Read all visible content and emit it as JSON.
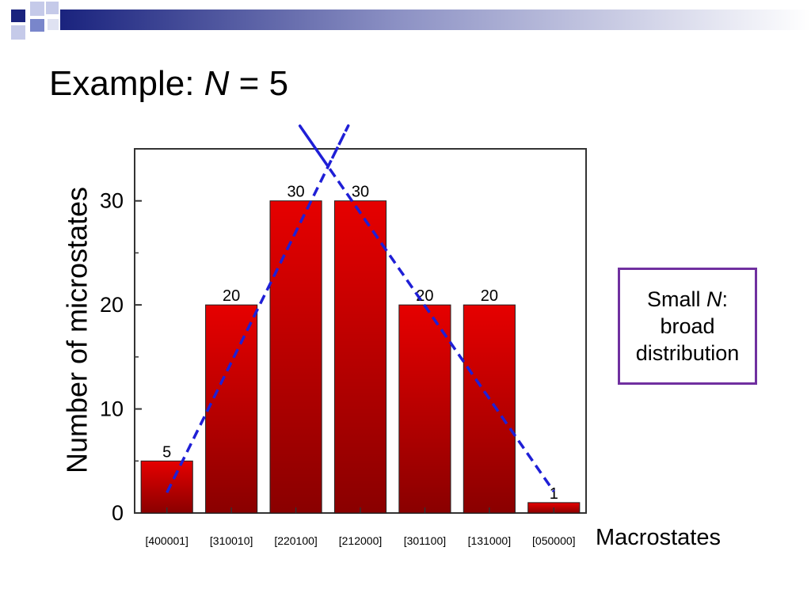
{
  "slide": {
    "title_prefix": "Example: ",
    "title_var": "N",
    "title_suffix": " = 5"
  },
  "note": {
    "line1_prefix": "Small ",
    "line1_var": "N",
    "line1_suffix": ":",
    "line2": "broad",
    "line3": "distribution"
  },
  "chart_data": {
    "type": "bar",
    "categories": [
      "[400001]",
      "[310010]",
      "[220100]",
      "[212000]",
      "[301100]",
      "[131000]",
      "[050000]"
    ],
    "values": [
      5,
      20,
      30,
      30,
      20,
      20,
      1
    ],
    "data_labels": [
      "5",
      "20",
      "30",
      "30",
      "20",
      "20",
      "1"
    ],
    "title": "",
    "xlabel": "Macrostates",
    "ylabel": "Number of microstates",
    "ylim": [
      0,
      35
    ],
    "yticks": [
      0,
      10,
      20,
      30
    ],
    "grid": false,
    "bar_color": "#e60000",
    "bar_color_dark": "#8a0000",
    "fit_curve": {
      "style": "dashed",
      "color": "#1f1fd6",
      "peak_value": 33.3
    }
  }
}
